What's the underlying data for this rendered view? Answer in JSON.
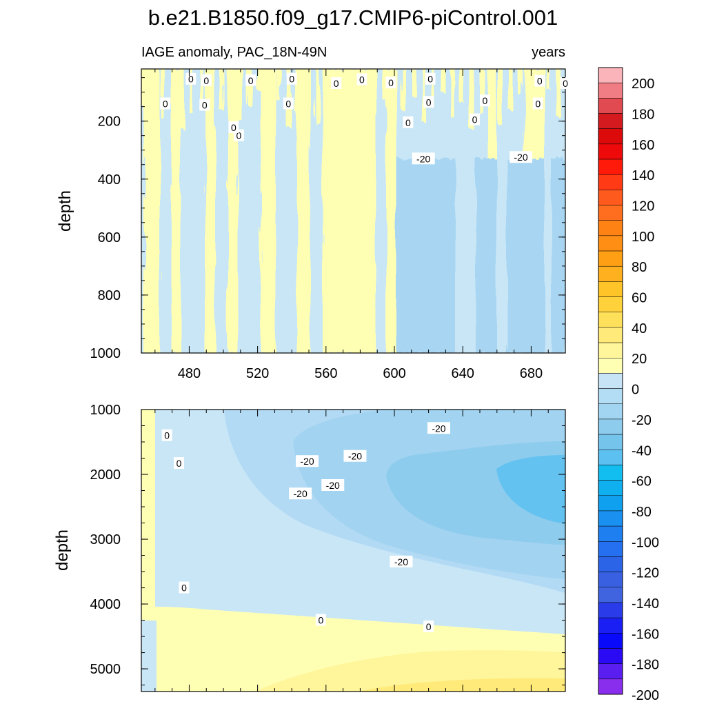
{
  "chart_data": {
    "type": "heatmap",
    "title": "b.e21.B1850.f09_g17.CMIP6-piControl.001",
    "subtitle_left": "IAGE anomaly, PAC_18N-49N",
    "subtitle_right": "years",
    "xlabel": "",
    "x_ticks": [
      480,
      520,
      560,
      600,
      640,
      680
    ],
    "xlim": [
      452,
      700
    ],
    "panels": [
      {
        "name": "upper",
        "ylabel": "depth",
        "ylim": [
          1000,
          20
        ],
        "y_ticks": [
          200,
          400,
          600,
          800,
          1000
        ],
        "contour_labels": [
          {
            "text": "0",
            "x": 481,
            "y": 55
          },
          {
            "text": "0",
            "x": 490,
            "y": 60
          },
          {
            "text": "0",
            "x": 516,
            "y": 60
          },
          {
            "text": "0",
            "x": 540,
            "y": 55
          },
          {
            "text": "0",
            "x": 566,
            "y": 70
          },
          {
            "text": "0",
            "x": 581,
            "y": 57
          },
          {
            "text": "0",
            "x": 598,
            "y": 68
          },
          {
            "text": "0",
            "x": 621,
            "y": 55
          },
          {
            "text": "0",
            "x": 685,
            "y": 62
          },
          {
            "text": "0",
            "x": 700,
            "y": 70
          },
          {
            "text": "0",
            "x": 489,
            "y": 145
          },
          {
            "text": "0",
            "x": 466,
            "y": 140
          },
          {
            "text": "0",
            "x": 538,
            "y": 140
          },
          {
            "text": "0",
            "x": 620,
            "y": 135
          },
          {
            "text": "0",
            "x": 684,
            "y": 140
          },
          {
            "text": "0",
            "x": 653,
            "y": 130
          },
          {
            "text": "0",
            "x": 608,
            "y": 205
          },
          {
            "text": "0",
            "x": 647,
            "y": 195
          },
          {
            "text": "0",
            "x": 509,
            "y": 250
          },
          {
            "text": "0",
            "x": 506,
            "y": 222
          },
          {
            "text": "-20",
            "x": 617,
            "y": 330
          },
          {
            "text": "-20",
            "x": 674,
            "y": 325
          }
        ]
      },
      {
        "name": "lower",
        "ylabel": "depth",
        "ylim": [
          5350,
          1000
        ],
        "y_ticks": [
          1000,
          2000,
          3000,
          4000,
          5000
        ],
        "contour_labels": [
          {
            "text": "0",
            "x": 467,
            "y": 1400
          },
          {
            "text": "0",
            "x": 474,
            "y": 1830
          },
          {
            "text": "0",
            "x": 477,
            "y": 3750
          },
          {
            "text": "0",
            "x": 557,
            "y": 4250
          },
          {
            "text": "0",
            "x": 620,
            "y": 4350
          },
          {
            "text": "-20",
            "x": 549,
            "y": 1800
          },
          {
            "text": "-20",
            "x": 577,
            "y": 1720
          },
          {
            "text": "-20",
            "x": 626,
            "y": 1290
          },
          {
            "text": "-20",
            "x": 545,
            "y": 2300
          },
          {
            "text": "-20",
            "x": 564,
            "y": 2170
          },
          {
            "text": "-20",
            "x": 604,
            "y": 3350
          }
        ]
      }
    ],
    "colorbar": {
      "labels": [
        "200",
        "180",
        "160",
        "140",
        "120",
        "100",
        "80",
        "60",
        "40",
        "20",
        "0",
        "-20",
        "-40",
        "-60",
        "-80",
        "-100",
        "-120",
        "-140",
        "-160",
        "-180",
        "-200"
      ],
      "colors_top_to_bottom": [
        "#FBB4B9",
        "#F07C84",
        "#E04A50",
        "#D41A1E",
        "#DC0A0A",
        "#EE0A0A",
        "#FF1A0A",
        "#FF3A14",
        "#FF5A1E",
        "#FF6E1E",
        "#FF8214",
        "#FF8E14",
        "#FFA014",
        "#FFB01E",
        "#FFC428",
        "#FFD23C",
        "#FFE05A",
        "#FFEA7A",
        "#FFF59A",
        "#FFFFB4",
        "#C6E4F6",
        "#B2DDF4",
        "#A2D5F2",
        "#8ECCEE",
        "#74C4EC",
        "#5CC0F0",
        "#12BEF0",
        "#10B0F0",
        "#10A0F0",
        "#1A90F0",
        "#1E80F0",
        "#2470F0",
        "#2C64E8",
        "#3860E0",
        "#4064E0",
        "#2A3CEA",
        "#1A20F4",
        "#0A0AFA",
        "#2A0AF4",
        "#5A1EF0",
        "#8A2EEE"
      ]
    }
  }
}
